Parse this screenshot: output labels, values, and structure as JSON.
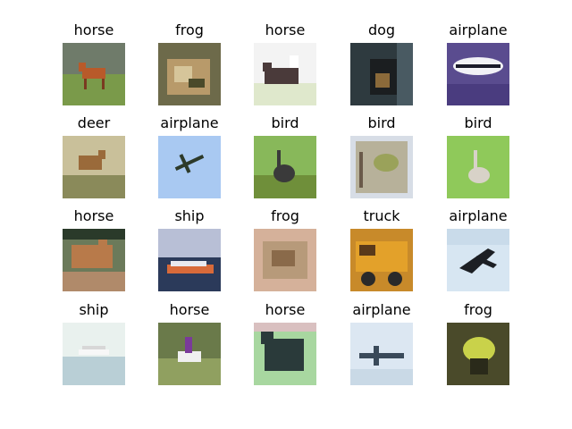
{
  "grid": [
    {
      "label": "horse",
      "icon": "horse-photo"
    },
    {
      "label": "frog",
      "icon": "frog-photo"
    },
    {
      "label": "horse",
      "icon": "horse-photo"
    },
    {
      "label": "dog",
      "icon": "dog-photo"
    },
    {
      "label": "airplane",
      "icon": "airplane-photo"
    },
    {
      "label": "deer",
      "icon": "deer-photo"
    },
    {
      "label": "airplane",
      "icon": "airplane-photo"
    },
    {
      "label": "bird",
      "icon": "bird-photo"
    },
    {
      "label": "bird",
      "icon": "bird-photo"
    },
    {
      "label": "bird",
      "icon": "bird-photo"
    },
    {
      "label": "horse",
      "icon": "horse-photo"
    },
    {
      "label": "ship",
      "icon": "ship-photo"
    },
    {
      "label": "frog",
      "icon": "frog-photo"
    },
    {
      "label": "truck",
      "icon": "truck-photo"
    },
    {
      "label": "airplane",
      "icon": "airplane-photo"
    },
    {
      "label": "ship",
      "icon": "ship-photo"
    },
    {
      "label": "horse",
      "icon": "horse-photo"
    },
    {
      "label": "horse",
      "icon": "horse-photo"
    },
    {
      "label": "airplane",
      "icon": "airplane-photo"
    },
    {
      "label": "frog",
      "icon": "frog-photo"
    }
  ]
}
